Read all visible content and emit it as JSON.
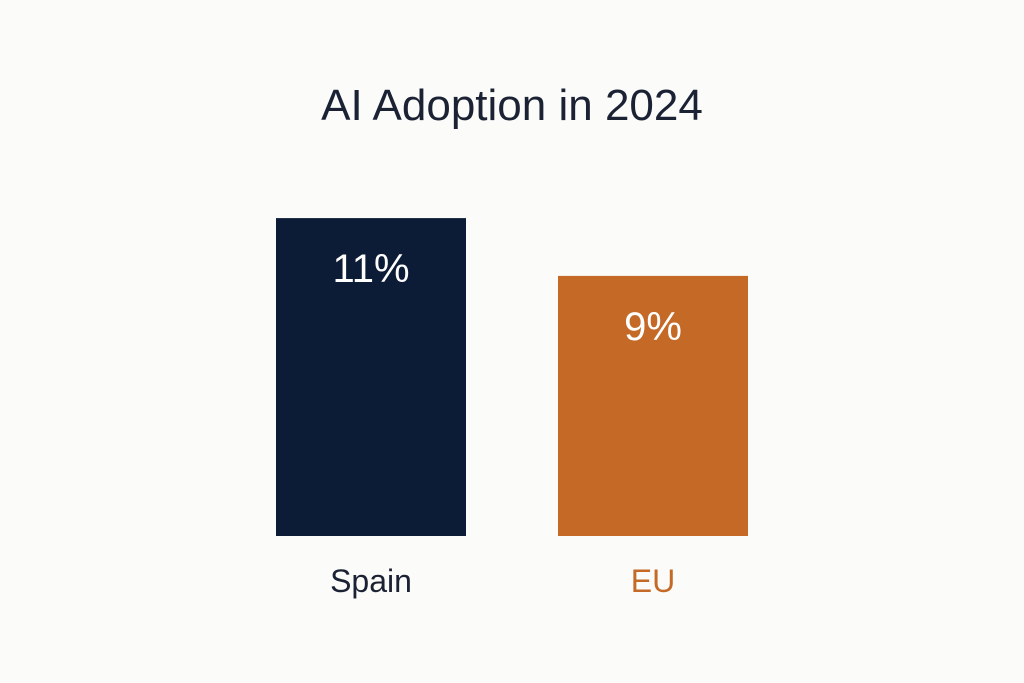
{
  "chart_data": {
    "type": "bar",
    "title": "AI Adoption in 2024",
    "xlabel": "",
    "ylabel": "",
    "unit": "%",
    "categories": [
      "Spain",
      "EU"
    ],
    "values": [
      11,
      9
    ],
    "data_labels": [
      "11%",
      "9%"
    ],
    "grid": false,
    "legend": "none",
    "colors": {
      "bars": [
        "#0d1c36",
        "#c46a26"
      ],
      "category_labels": [
        "#1b2233",
        "#c46a26"
      ],
      "value_labels": "#ffffff",
      "title": "#1b2233",
      "background": "#fbfbfa"
    }
  }
}
